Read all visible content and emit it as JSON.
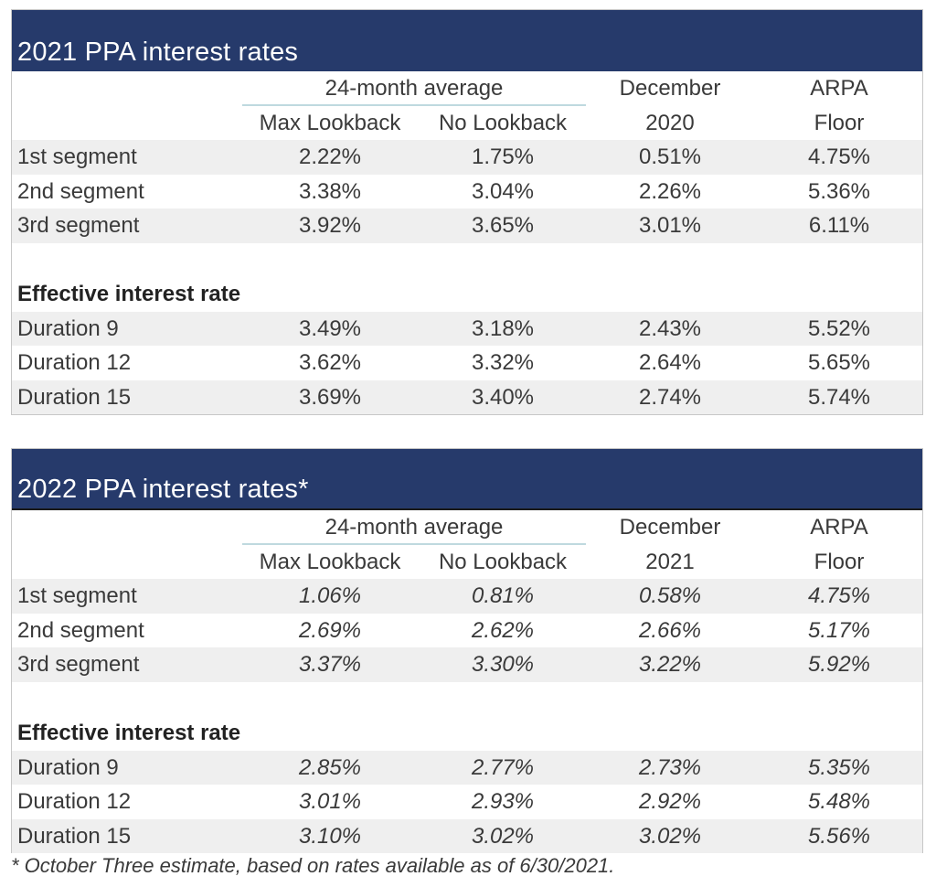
{
  "table2021": {
    "title": "2021 PPA interest rates",
    "header": {
      "avg_group": "24-month average",
      "col1": "Max Lookback",
      "col2": "No Lookback",
      "col3_top": "December",
      "col3_bottom": "2020",
      "col4_top": "ARPA",
      "col4_bottom": "Floor"
    },
    "segments": [
      {
        "label": "1st segment",
        "max": "2.22%",
        "nolb": "1.75%",
        "dec": "0.51%",
        "arpa": "4.75%"
      },
      {
        "label": "2nd segment",
        "max": "3.38%",
        "nolb": "3.04%",
        "dec": "2.26%",
        "arpa": "5.36%"
      },
      {
        "label": "3rd segment",
        "max": "3.92%",
        "nolb": "3.65%",
        "dec": "3.01%",
        "arpa": "6.11%"
      }
    ],
    "effective_heading": "Effective interest rate",
    "durations": [
      {
        "label": "Duration 9",
        "max": "3.49%",
        "nolb": "3.18%",
        "dec": "2.43%",
        "arpa": "5.52%"
      },
      {
        "label": "Duration 12",
        "max": "3.62%",
        "nolb": "3.32%",
        "dec": "2.64%",
        "arpa": "5.65%"
      },
      {
        "label": "Duration 15",
        "max": "3.69%",
        "nolb": "3.40%",
        "dec": "2.74%",
        "arpa": "5.74%"
      }
    ]
  },
  "table2022": {
    "title": "2022 PPA interest rates*",
    "header": {
      "avg_group": "24-month average",
      "col1": "Max Lookback",
      "col2": "No Lookback",
      "col3_top": "December",
      "col3_bottom": "2021",
      "col4_top": "ARPA",
      "col4_bottom": "Floor"
    },
    "segments": [
      {
        "label": "1st segment",
        "max": "1.06%",
        "nolb": "0.81%",
        "dec": "0.58%",
        "arpa": "4.75%"
      },
      {
        "label": "2nd segment",
        "max": "2.69%",
        "nolb": "2.62%",
        "dec": "2.66%",
        "arpa": "5.17%"
      },
      {
        "label": "3rd segment",
        "max": "3.37%",
        "nolb": "3.30%",
        "dec": "3.22%",
        "arpa": "5.92%"
      }
    ],
    "effective_heading": "Effective interest rate",
    "durations": [
      {
        "label": "Duration 9",
        "max": "2.85%",
        "nolb": "2.77%",
        "dec": "2.73%",
        "arpa": "5.35%"
      },
      {
        "label": "Duration 12",
        "max": "3.01%",
        "nolb": "2.93%",
        "dec": "2.92%",
        "arpa": "5.48%"
      },
      {
        "label": "Duration 15",
        "max": "3.10%",
        "nolb": "3.02%",
        "dec": "3.02%",
        "arpa": "5.56%"
      }
    ]
  },
  "footnote": "* October Three estimate, based on rates available as of 6/30/2021.",
  "colors": {
    "title_bar": "#263a6b",
    "row_shade": "#efefef",
    "avg_underline": "#bfd9df"
  }
}
